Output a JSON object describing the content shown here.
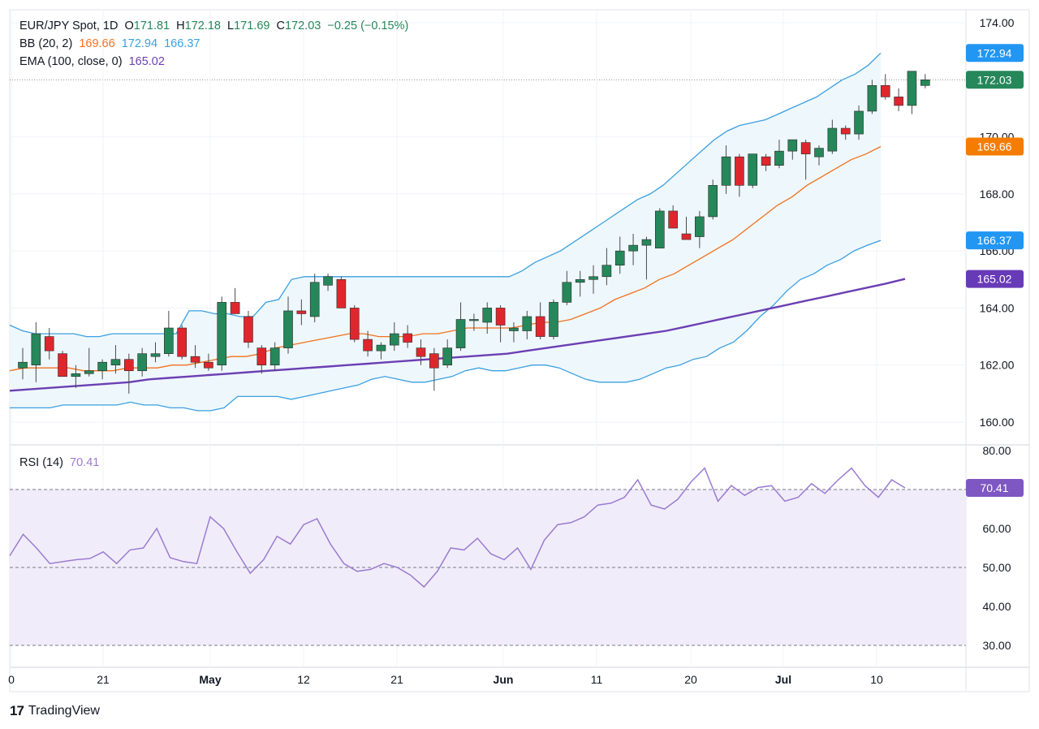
{
  "header": {
    "symbol": "EUR/JPY Spot, 1D",
    "o_key": "O",
    "o_val": "171.81",
    "h_key": "H",
    "h_val": "172.18",
    "l_key": "L",
    "l_val": "171.69",
    "c_key": "C",
    "c_val": "172.03",
    "change": "−0.25 (−0.15%)"
  },
  "bb_legend": {
    "label": "BB (20, 2)",
    "mid": "169.66",
    "upper": "172.94",
    "lower": "166.37"
  },
  "ema_legend": {
    "label": "EMA (100, close, 0)",
    "value": "165.02"
  },
  "rsi_legend": {
    "label": "RSI (14)",
    "value": "70.41"
  },
  "footer": {
    "logo": "17",
    "brand": "TradingView"
  },
  "colors": {
    "up": "#26875a",
    "down": "#e0262d",
    "bb_band": "#3aa0e0",
    "bb_fill": "#eef7fc",
    "bb_mid": "#f2711c",
    "ema": "#6c3fb3",
    "rsi_line": "#9a7cd0",
    "rsi_fill": "#f1ecfa",
    "last_price": "#26875a"
  },
  "chart_data": [
    {
      "type": "candlestick",
      "ylim": [
        160,
        174
      ],
      "yticks": [
        "174.00",
        "170.00",
        "168.00",
        "166.00",
        "164.00",
        "162.00",
        "160.00"
      ],
      "x_ticks": [
        "0",
        "21",
        "May",
        "12",
        "21",
        "Jun",
        "11",
        "20",
        "Jul",
        "10"
      ],
      "candles": [
        {
          "o": 161.9,
          "h": 162.6,
          "l": 161.5,
          "c": 162.1
        },
        {
          "o": 162.0,
          "h": 163.5,
          "l": 161.4,
          "c": 163.1
        },
        {
          "o": 163.0,
          "h": 163.3,
          "l": 162.2,
          "c": 162.5
        },
        {
          "o": 162.4,
          "h": 162.5,
          "l": 161.6,
          "c": 161.6
        },
        {
          "o": 161.6,
          "h": 162.0,
          "l": 161.2,
          "c": 161.7
        },
        {
          "o": 161.7,
          "h": 162.6,
          "l": 161.6,
          "c": 161.8
        },
        {
          "o": 161.8,
          "h": 162.2,
          "l": 161.5,
          "c": 162.1
        },
        {
          "o": 162.0,
          "h": 162.7,
          "l": 161.7,
          "c": 162.2
        },
        {
          "o": 162.2,
          "h": 162.4,
          "l": 161.0,
          "c": 161.8
        },
        {
          "o": 161.8,
          "h": 162.6,
          "l": 161.6,
          "c": 162.4
        },
        {
          "o": 162.3,
          "h": 162.8,
          "l": 162.1,
          "c": 162.4
        },
        {
          "o": 162.4,
          "h": 163.9,
          "l": 162.3,
          "c": 163.3
        },
        {
          "o": 163.3,
          "h": 163.4,
          "l": 162.2,
          "c": 162.3
        },
        {
          "o": 162.3,
          "h": 162.7,
          "l": 161.9,
          "c": 162.1
        },
        {
          "o": 162.1,
          "h": 162.4,
          "l": 161.8,
          "c": 161.9
        },
        {
          "o": 162.0,
          "h": 164.4,
          "l": 161.8,
          "c": 164.2
        },
        {
          "o": 164.2,
          "h": 164.7,
          "l": 163.8,
          "c": 163.8
        },
        {
          "o": 163.7,
          "h": 163.9,
          "l": 162.6,
          "c": 162.8
        },
        {
          "o": 162.6,
          "h": 162.7,
          "l": 161.7,
          "c": 162.0
        },
        {
          "o": 162.0,
          "h": 162.8,
          "l": 161.8,
          "c": 162.6
        },
        {
          "o": 162.6,
          "h": 164.4,
          "l": 162.4,
          "c": 163.9
        },
        {
          "o": 163.9,
          "h": 164.3,
          "l": 163.4,
          "c": 163.8
        },
        {
          "o": 163.7,
          "h": 165.2,
          "l": 163.5,
          "c": 164.9
        },
        {
          "o": 164.8,
          "h": 165.2,
          "l": 164.6,
          "c": 165.1
        },
        {
          "o": 165.0,
          "h": 165.1,
          "l": 164.0,
          "c": 164.0
        },
        {
          "o": 164.0,
          "h": 164.1,
          "l": 162.8,
          "c": 162.9
        },
        {
          "o": 162.9,
          "h": 163.2,
          "l": 162.3,
          "c": 162.5
        },
        {
          "o": 162.5,
          "h": 162.8,
          "l": 162.2,
          "c": 162.7
        },
        {
          "o": 162.7,
          "h": 163.5,
          "l": 162.5,
          "c": 163.1
        },
        {
          "o": 163.1,
          "h": 163.4,
          "l": 162.6,
          "c": 162.8
        },
        {
          "o": 162.6,
          "h": 162.9,
          "l": 162.0,
          "c": 162.3
        },
        {
          "o": 162.4,
          "h": 162.6,
          "l": 161.1,
          "c": 161.9
        },
        {
          "o": 162.0,
          "h": 162.9,
          "l": 161.9,
          "c": 162.6
        },
        {
          "o": 162.6,
          "h": 164.2,
          "l": 162.5,
          "c": 163.6
        },
        {
          "o": 163.6,
          "h": 163.8,
          "l": 163.2,
          "c": 163.6
        },
        {
          "o": 163.5,
          "h": 164.2,
          "l": 163.1,
          "c": 164.0
        },
        {
          "o": 164.0,
          "h": 164.1,
          "l": 162.8,
          "c": 163.4
        },
        {
          "o": 163.2,
          "h": 163.5,
          "l": 162.8,
          "c": 163.3
        },
        {
          "o": 163.2,
          "h": 163.9,
          "l": 162.9,
          "c": 163.7
        },
        {
          "o": 163.7,
          "h": 164.2,
          "l": 162.9,
          "c": 163.0
        },
        {
          "o": 163.0,
          "h": 164.3,
          "l": 162.9,
          "c": 164.2
        },
        {
          "o": 164.2,
          "h": 165.3,
          "l": 164.1,
          "c": 164.9
        },
        {
          "o": 164.9,
          "h": 165.3,
          "l": 164.4,
          "c": 165.0
        },
        {
          "o": 165.0,
          "h": 165.5,
          "l": 164.5,
          "c": 165.1
        },
        {
          "o": 165.1,
          "h": 166.1,
          "l": 164.8,
          "c": 165.5
        },
        {
          "o": 165.5,
          "h": 166.5,
          "l": 165.2,
          "c": 166.0
        },
        {
          "o": 166.0,
          "h": 166.6,
          "l": 165.5,
          "c": 166.2
        },
        {
          "o": 166.2,
          "h": 166.5,
          "l": 165.0,
          "c": 166.4
        },
        {
          "o": 166.1,
          "h": 167.5,
          "l": 166.1,
          "c": 167.4
        },
        {
          "o": 167.4,
          "h": 167.6,
          "l": 166.8,
          "c": 166.8
        },
        {
          "o": 166.6,
          "h": 167.2,
          "l": 166.5,
          "c": 166.4
        },
        {
          "o": 166.5,
          "h": 167.4,
          "l": 166.1,
          "c": 167.2
        },
        {
          "o": 167.2,
          "h": 168.5,
          "l": 167.1,
          "c": 168.3
        },
        {
          "o": 168.3,
          "h": 169.7,
          "l": 168.0,
          "c": 169.3
        },
        {
          "o": 169.3,
          "h": 169.4,
          "l": 167.9,
          "c": 168.3
        },
        {
          "o": 168.3,
          "h": 169.4,
          "l": 168.2,
          "c": 169.4
        },
        {
          "o": 169.3,
          "h": 169.4,
          "l": 168.8,
          "c": 169.0
        },
        {
          "o": 169.0,
          "h": 169.9,
          "l": 168.9,
          "c": 169.5
        },
        {
          "o": 169.5,
          "h": 169.9,
          "l": 169.2,
          "c": 169.9
        },
        {
          "o": 169.8,
          "h": 169.9,
          "l": 168.5,
          "c": 169.4
        },
        {
          "o": 169.3,
          "h": 169.7,
          "l": 169.0,
          "c": 169.6
        },
        {
          "o": 169.5,
          "h": 170.6,
          "l": 169.4,
          "c": 170.3
        },
        {
          "o": 170.3,
          "h": 170.4,
          "l": 169.9,
          "c": 170.1
        },
        {
          "o": 170.1,
          "h": 171.1,
          "l": 169.9,
          "c": 170.9
        },
        {
          "o": 170.9,
          "h": 172.0,
          "l": 170.8,
          "c": 171.8
        },
        {
          "o": 171.8,
          "h": 172.2,
          "l": 171.3,
          "c": 171.4
        },
        {
          "o": 171.4,
          "h": 171.7,
          "l": 170.9,
          "c": 171.1
        },
        {
          "o": 171.1,
          "h": 172.3,
          "l": 170.8,
          "c": 172.3
        },
        {
          "o": 171.8,
          "h": 172.2,
          "l": 171.7,
          "c": 172.0
        }
      ],
      "bb_upper": [
        163.4,
        163.2,
        163.1,
        163.1,
        163.1,
        163.1,
        163.0,
        163.0,
        163.1,
        163.1,
        163.1,
        163.1,
        163.1,
        163.1,
        163.9,
        163.9,
        163.8,
        163.8,
        163.7,
        163.7,
        164.2,
        164.3,
        165.0,
        165.1,
        165.1,
        165.1,
        165.1,
        165.1,
        165.1,
        165.1,
        165.1,
        165.1,
        165.1,
        165.1,
        165.1,
        165.1,
        165.1,
        165.1,
        165.1,
        165.1,
        165.3,
        165.6,
        165.8,
        166.0,
        166.3,
        166.6,
        166.9,
        167.2,
        167.5,
        167.8,
        168.0,
        168.3,
        168.7,
        169.1,
        169.5,
        169.9,
        170.2,
        170.4,
        170.5,
        170.6,
        170.8,
        171.0,
        171.2,
        171.4,
        171.7,
        172.0,
        172.2,
        172.5,
        172.94
      ],
      "bb_lower": [
        160.5,
        160.5,
        160.5,
        160.5,
        160.6,
        160.6,
        160.6,
        160.6,
        160.6,
        160.7,
        160.6,
        160.6,
        160.5,
        160.5,
        160.4,
        160.4,
        160.5,
        160.9,
        160.9,
        160.9,
        160.9,
        160.8,
        160.9,
        161.0,
        161.1,
        161.2,
        161.3,
        161.5,
        161.6,
        161.5,
        161.4,
        161.4,
        161.5,
        161.6,
        161.8,
        161.9,
        161.8,
        161.8,
        161.9,
        162.0,
        162.0,
        161.9,
        161.7,
        161.5,
        161.4,
        161.4,
        161.4,
        161.5,
        161.7,
        161.9,
        162.0,
        162.2,
        162.3,
        162.6,
        162.8,
        163.2,
        163.7,
        164.1,
        164.6,
        165.0,
        165.2,
        165.5,
        165.7,
        166.0,
        166.2,
        166.37
      ],
      "bb_mid": [
        161.8,
        161.9,
        161.9,
        161.9,
        161.9,
        161.8,
        161.8,
        161.8,
        161.9,
        161.9,
        161.9,
        162.0,
        162.0,
        162.1,
        162.2,
        162.3,
        162.3,
        162.4,
        162.6,
        162.7,
        162.8,
        162.9,
        163.0,
        163.1,
        163.1,
        163.0,
        163.0,
        163.0,
        163.1,
        163.1,
        163.2,
        163.3,
        163.3,
        163.3,
        163.3,
        163.4,
        163.5,
        163.5,
        163.6,
        163.8,
        164.0,
        164.3,
        164.5,
        164.7,
        165.0,
        165.2,
        165.5,
        165.8,
        166.1,
        166.4,
        166.8,
        167.2,
        167.6,
        167.9,
        168.3,
        168.6,
        168.9,
        169.2,
        169.4,
        169.66
      ],
      "ema": [
        161.1,
        161.15,
        161.2,
        161.25,
        161.3,
        161.35,
        161.4,
        161.5,
        161.55,
        161.6,
        161.65,
        161.7,
        161.75,
        161.8,
        161.85,
        161.9,
        161.95,
        162.0,
        162.05,
        162.1,
        162.15,
        162.2,
        162.25,
        162.3,
        162.35,
        162.4,
        162.5,
        162.6,
        162.7,
        162.8,
        162.9,
        163.0,
        163.1,
        163.2,
        163.35,
        163.5,
        163.65,
        163.8,
        163.95,
        164.1,
        164.25,
        164.4,
        164.55,
        164.7,
        164.85,
        165.02
      ],
      "last_price_labels": {
        "bb_upper": "172.94",
        "close": "172.03",
        "bb_mid": "169.66",
        "bb_lower": "166.37",
        "ema": "165.02"
      }
    },
    {
      "type": "line",
      "title": "RSI (14)",
      "ylim": [
        30,
        80
      ],
      "yticks": [
        "80.00",
        "60.00",
        "50.00",
        "40.00",
        "30.00"
      ],
      "levels": [
        70,
        50,
        30
      ],
      "values": [
        53,
        58.5,
        55,
        51,
        51.5,
        52,
        52.3,
        54,
        51,
        54.5,
        55,
        60,
        52.5,
        51.5,
        51,
        63,
        60,
        54,
        48.5,
        52,
        58,
        56,
        61,
        62.5,
        56,
        51,
        49,
        49.5,
        51,
        50,
        48,
        45,
        49,
        55,
        54.5,
        57.5,
        53.5,
        52,
        55,
        49.5,
        57,
        61,
        61.5,
        63,
        66,
        66.5,
        68,
        72.5,
        66,
        65,
        67.5,
        72,
        75.5,
        67,
        71,
        68.5,
        70.5,
        71,
        67,
        68,
        71.5,
        69,
        72.5,
        75.5,
        71,
        68,
        72.5,
        70.41
      ],
      "last_label": "70.41"
    }
  ]
}
